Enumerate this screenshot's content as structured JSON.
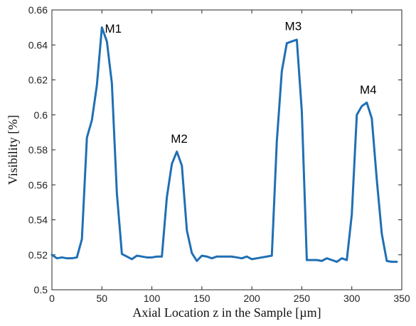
{
  "chart_data": {
    "type": "line",
    "title": "",
    "xlabel": "Axial Location z in the Sample [µm]",
    "ylabel": "Visibility [%]",
    "xlim": [
      0,
      350
    ],
    "ylim": [
      0.5,
      0.66
    ],
    "x_ticks": [
      0,
      50,
      100,
      150,
      200,
      250,
      300,
      350
    ],
    "y_ticks": [
      0.5,
      0.52,
      0.54,
      0.56,
      0.58,
      0.6,
      0.62,
      0.64,
      0.66
    ],
    "x_tick_labels": [
      "0",
      "50",
      "100",
      "150",
      "200",
      "250",
      "300",
      "350"
    ],
    "y_tick_labels": [
      "0.5",
      "0.52",
      "0.54",
      "0.56",
      "0.58",
      "0.6",
      "0.62",
      "0.64",
      "0.66"
    ],
    "grid": false,
    "line_color": "#1f6fb4",
    "series": [
      {
        "x": [
          0,
          5,
          10,
          15,
          20,
          25,
          30,
          35,
          40,
          45,
          50,
          55,
          60,
          65,
          70,
          75,
          80,
          85,
          90,
          95,
          100,
          105,
          110,
          115,
          120,
          125,
          130,
          135,
          140,
          145,
          150,
          155,
          160,
          165,
          170,
          175,
          180,
          185,
          190,
          195,
          200,
          205,
          210,
          215,
          220,
          225,
          230,
          235,
          240,
          245,
          250,
          255,
          260,
          265,
          270,
          275,
          280,
          285,
          290,
          295,
          300,
          305,
          310,
          315,
          320,
          325,
          330,
          335,
          340,
          345
        ],
        "y": [
          0.52,
          0.518,
          0.5185,
          0.518,
          0.518,
          0.5185,
          0.529,
          0.587,
          0.597,
          0.617,
          0.65,
          0.642,
          0.618,
          0.555,
          0.5205,
          0.519,
          0.5175,
          0.5195,
          0.519,
          0.5185,
          0.5185,
          0.519,
          0.519,
          0.553,
          0.572,
          0.579,
          0.571,
          0.534,
          0.521,
          0.5165,
          0.5195,
          0.519,
          0.518,
          0.519,
          0.519,
          0.519,
          0.519,
          0.5185,
          0.518,
          0.519,
          0.5175,
          0.518,
          0.5185,
          0.519,
          0.5195,
          0.585,
          0.625,
          0.641,
          0.642,
          0.643,
          0.602,
          0.517,
          0.517,
          0.517,
          0.5165,
          0.518,
          0.517,
          0.516,
          0.518,
          0.517,
          0.543,
          0.6,
          0.605,
          0.607,
          0.598,
          0.563,
          0.532,
          0.5165,
          0.516,
          0.516
        ]
      }
    ],
    "annotations": [
      {
        "text": "M1",
        "x": 53,
        "y": 0.647
      },
      {
        "text": "M2",
        "x": 119,
        "y": 0.584
      },
      {
        "text": "M3",
        "x": 233,
        "y": 0.6485
      },
      {
        "text": "M4",
        "x": 308,
        "y": 0.612
      }
    ]
  }
}
